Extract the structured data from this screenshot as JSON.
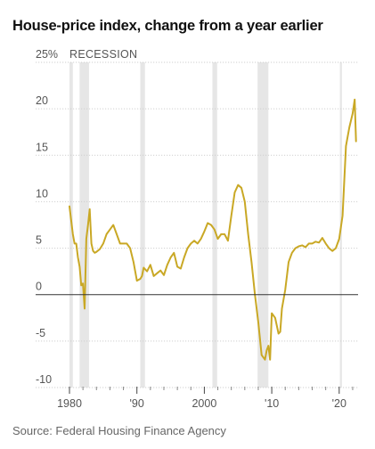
{
  "title": "House-price index, change from a year earlier",
  "source": "Source: Federal Housing Finance Agency",
  "colors": {
    "line": "#c9a825",
    "recession": "#e6e6e6",
    "grid": "#cfcfcf",
    "zero": "#333333",
    "text": "#555555"
  },
  "chart_data": {
    "type": "line",
    "title": "House-price index, change from a year earlier",
    "ylim": [
      -10,
      25
    ],
    "xlim": [
      1980,
      2022.8
    ],
    "y_ticks": [
      {
        "value": 25,
        "label": "25%"
      },
      {
        "value": 20,
        "label": "20"
      },
      {
        "value": 15,
        "label": "15"
      },
      {
        "value": 10,
        "label": "10"
      },
      {
        "value": 5,
        "label": "5"
      },
      {
        "value": 0,
        "label": "0"
      },
      {
        "value": -5,
        "label": "-5"
      },
      {
        "value": -10,
        "label": "-10"
      }
    ],
    "x_major_ticks": [
      {
        "value": 1980,
        "label": "1980"
      },
      {
        "value": 1990,
        "label": "'90"
      },
      {
        "value": 2000,
        "label": "2000"
      },
      {
        "value": 2010,
        "label": "'10"
      },
      {
        "value": 2020,
        "label": "'20"
      }
    ],
    "x_minor_ticks": [
      1982,
      1984,
      1986,
      1988,
      1992,
      1994,
      1996,
      1998,
      2002,
      2004,
      2006,
      2008,
      2012,
      2014,
      2016,
      2018,
      2022
    ],
    "recession_label": "RECESSION",
    "recessions": [
      [
        1980.0,
        1980.5
      ],
      [
        1981.5,
        1982.9
      ],
      [
        1990.5,
        1991.2
      ],
      [
        2001.2,
        2001.9
      ],
      [
        2007.9,
        2009.5
      ],
      [
        2020.1,
        2020.4
      ]
    ],
    "grid": true,
    "series": [
      {
        "x": [
          1980.0,
          1980.25,
          1980.5,
          1980.75,
          1981.0,
          1981.25,
          1981.5,
          1981.75,
          1982.0,
          1982.25,
          1982.5,
          1982.75,
          1983.0,
          1983.25,
          1983.5,
          1983.75,
          1984.0,
          1984.5,
          1985.0,
          1985.5,
          1986.0,
          1986.5,
          1987.0,
          1987.5,
          1988.0,
          1988.5,
          1989.0,
          1989.5,
          1990.0,
          1990.5,
          1990.75,
          1991.0,
          1991.5,
          1992.0,
          1992.5,
          1993.0,
          1993.5,
          1994.0,
          1994.5,
          1995.0,
          1995.5,
          1996.0,
          1996.5,
          1997.0,
          1997.5,
          1998.0,
          1998.5,
          1999.0,
          1999.5,
          2000.0,
          2000.5,
          2001.0,
          2001.5,
          2002.0,
          2002.5,
          2003.0,
          2003.5,
          2004.0,
          2004.5,
          2005.0,
          2005.5,
          2006.0,
          2006.5,
          2007.0,
          2007.5,
          2008.0,
          2008.5,
          2009.0,
          2009.25,
          2009.5,
          2009.75,
          2010.0,
          2010.5,
          2011.0,
          2011.25,
          2011.5,
          2012.0,
          2012.5,
          2013.0,
          2013.5,
          2014.0,
          2014.5,
          2015.0,
          2015.5,
          2016.0,
          2016.5,
          2017.0,
          2017.5,
          2018.0,
          2018.5,
          2019.0,
          2019.5,
          2020.0,
          2020.5,
          2021.0,
          2021.5,
          2022.0,
          2022.3,
          2022.5
        ],
        "y": [
          9.5,
          8.0,
          6.5,
          5.5,
          5.5,
          4.0,
          3.0,
          1.0,
          1.2,
          -1.5,
          6.0,
          7.5,
          9.2,
          5.5,
          4.7,
          4.5,
          4.6,
          4.9,
          5.5,
          6.5,
          7.0,
          7.5,
          6.5,
          5.5,
          5.5,
          5.5,
          5.0,
          3.5,
          1.5,
          1.7,
          2.0,
          2.9,
          2.5,
          3.2,
          2.0,
          2.3,
          2.6,
          2.1,
          3.2,
          4.0,
          4.5,
          3.0,
          2.8,
          4.0,
          5.0,
          5.5,
          5.8,
          5.5,
          6.0,
          6.8,
          7.7,
          7.5,
          7.0,
          6.0,
          6.5,
          6.5,
          5.8,
          8.5,
          11.0,
          11.8,
          11.5,
          10.0,
          6.5,
          3.5,
          0.0,
          -3.0,
          -6.5,
          -7.0,
          -6.0,
          -5.5,
          -7.0,
          -2.0,
          -2.5,
          -4.2,
          -4.0,
          -1.5,
          0.5,
          3.5,
          4.5,
          5.0,
          5.2,
          5.3,
          5.1,
          5.5,
          5.5,
          5.7,
          5.6,
          6.1,
          5.5,
          5.0,
          4.7,
          5.0,
          6.0,
          8.5,
          16.0,
          18.0,
          19.5,
          21.0,
          16.5
        ]
      }
    ]
  }
}
